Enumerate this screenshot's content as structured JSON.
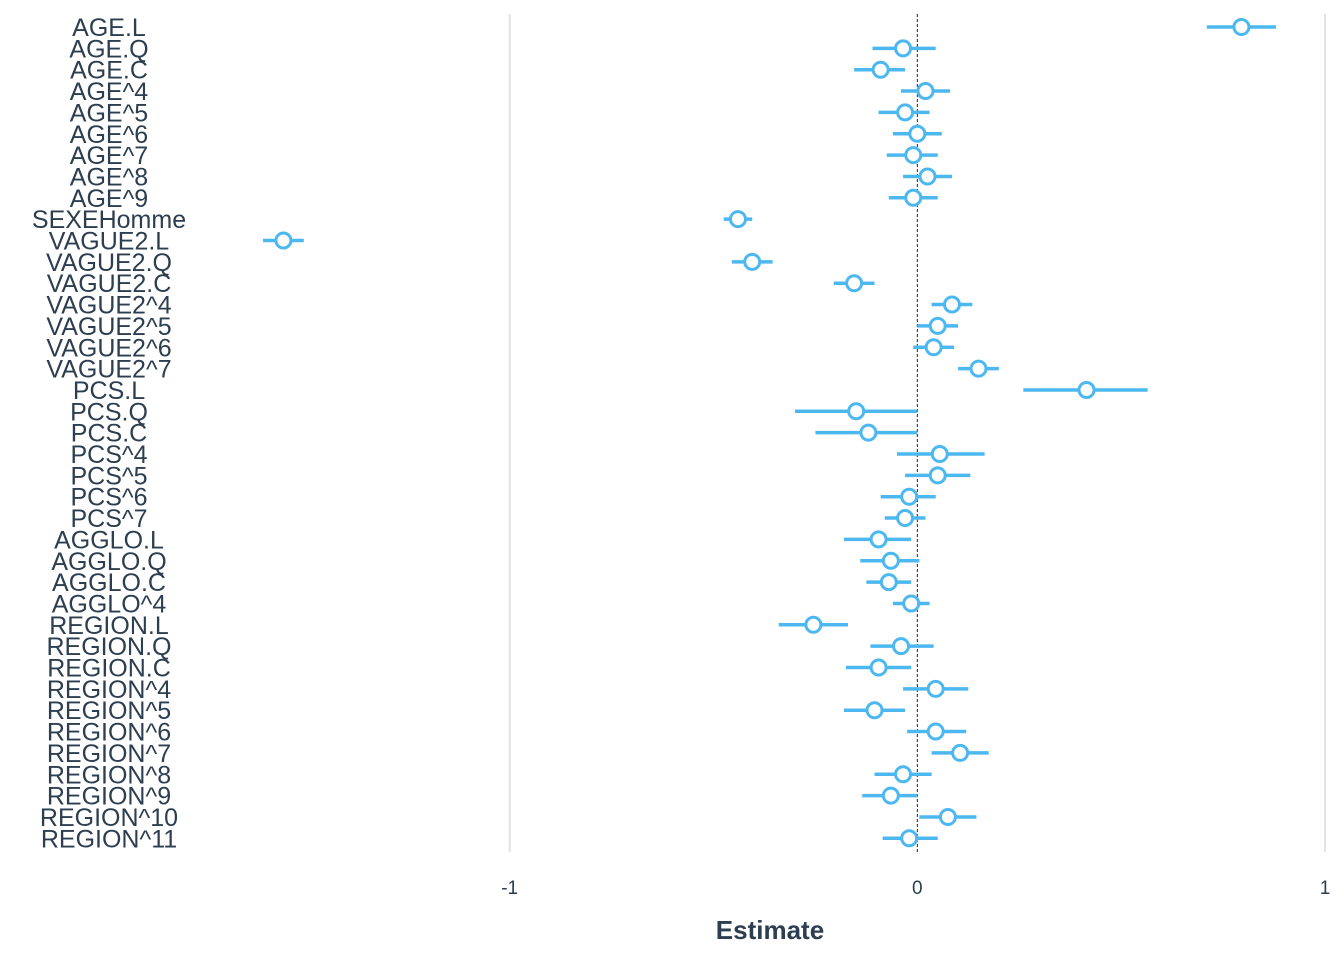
{
  "chart_data": {
    "type": "scatter",
    "variant": "coefficient-plot",
    "xlabel": "Estimate",
    "xlim": [
      -2.0,
      1.0
    ],
    "x_ticks": [
      -1,
      0,
      1
    ],
    "x_tick_labels": [
      "-1",
      "0",
      "1"
    ],
    "zero_line": true,
    "grid": "vertical-major",
    "color": "#4db8f0",
    "terms": [
      {
        "term": "AGE.L",
        "estimate": 0.795,
        "lo": 0.71,
        "hi": 0.88
      },
      {
        "term": "AGE.Q",
        "estimate": -0.035,
        "lo": -0.11,
        "hi": 0.045
      },
      {
        "term": "AGE.C",
        "estimate": -0.09,
        "lo": -0.155,
        "hi": -0.03
      },
      {
        "term": "AGE^4",
        "estimate": 0.02,
        "lo": -0.04,
        "hi": 0.08
      },
      {
        "term": "AGE^5",
        "estimate": -0.03,
        "lo": -0.095,
        "hi": 0.03
      },
      {
        "term": "AGE^6",
        "estimate": 0.0,
        "lo": -0.06,
        "hi": 0.06
      },
      {
        "term": "AGE^7",
        "estimate": -0.01,
        "lo": -0.075,
        "hi": 0.05
      },
      {
        "term": "AGE^8",
        "estimate": 0.025,
        "lo": -0.035,
        "hi": 0.085
      },
      {
        "term": "AGE^9",
        "estimate": -0.01,
        "lo": -0.07,
        "hi": 0.05
      },
      {
        "term": "SEXEHomme",
        "estimate": -0.44,
        "lo": -0.475,
        "hi": -0.405
      },
      {
        "term": "VAGUE2.L",
        "estimate": -1.555,
        "lo": -1.605,
        "hi": -1.505
      },
      {
        "term": "VAGUE2.Q",
        "estimate": -0.405,
        "lo": -0.455,
        "hi": -0.355
      },
      {
        "term": "VAGUE2.C",
        "estimate": -0.155,
        "lo": -0.205,
        "hi": -0.105
      },
      {
        "term": "VAGUE2^4",
        "estimate": 0.085,
        "lo": 0.035,
        "hi": 0.135
      },
      {
        "term": "VAGUE2^5",
        "estimate": 0.05,
        "lo": 0.0,
        "hi": 0.1
      },
      {
        "term": "VAGUE2^6",
        "estimate": 0.04,
        "lo": -0.01,
        "hi": 0.09
      },
      {
        "term": "VAGUE2^7",
        "estimate": 0.15,
        "lo": 0.1,
        "hi": 0.2
      },
      {
        "term": "PCS.L",
        "estimate": 0.415,
        "lo": 0.26,
        "hi": 0.565
      },
      {
        "term": "PCS.Q",
        "estimate": -0.15,
        "lo": -0.3,
        "hi": 0.0
      },
      {
        "term": "PCS.C",
        "estimate": -0.12,
        "lo": -0.25,
        "hi": 0.0
      },
      {
        "term": "PCS^4",
        "estimate": 0.055,
        "lo": -0.05,
        "hi": 0.165
      },
      {
        "term": "PCS^5",
        "estimate": 0.05,
        "lo": -0.03,
        "hi": 0.13
      },
      {
        "term": "PCS^6",
        "estimate": -0.02,
        "lo": -0.09,
        "hi": 0.045
      },
      {
        "term": "PCS^7",
        "estimate": -0.03,
        "lo": -0.08,
        "hi": 0.02
      },
      {
        "term": "AGGLO.L",
        "estimate": -0.095,
        "lo": -0.18,
        "hi": -0.015
      },
      {
        "term": "AGGLO.Q",
        "estimate": -0.065,
        "lo": -0.14,
        "hi": 0.005
      },
      {
        "term": "AGGLO.C",
        "estimate": -0.07,
        "lo": -0.125,
        "hi": -0.015
      },
      {
        "term": "AGGLO^4",
        "estimate": -0.015,
        "lo": -0.06,
        "hi": 0.03
      },
      {
        "term": "REGION.L",
        "estimate": -0.255,
        "lo": -0.34,
        "hi": -0.17
      },
      {
        "term": "REGION.Q",
        "estimate": -0.04,
        "lo": -0.115,
        "hi": 0.04
      },
      {
        "term": "REGION.C",
        "estimate": -0.095,
        "lo": -0.175,
        "hi": -0.015
      },
      {
        "term": "REGION^4",
        "estimate": 0.045,
        "lo": -0.035,
        "hi": 0.125
      },
      {
        "term": "REGION^5",
        "estimate": -0.105,
        "lo": -0.18,
        "hi": -0.03
      },
      {
        "term": "REGION^6",
        "estimate": 0.045,
        "lo": -0.025,
        "hi": 0.12
      },
      {
        "term": "REGION^7",
        "estimate": 0.105,
        "lo": 0.035,
        "hi": 0.175
      },
      {
        "term": "REGION^8",
        "estimate": -0.035,
        "lo": -0.105,
        "hi": 0.035
      },
      {
        "term": "REGION^9",
        "estimate": -0.065,
        "lo": -0.135,
        "hi": 0.0
      },
      {
        "term": "REGION^10",
        "estimate": 0.075,
        "lo": 0.005,
        "hi": 0.145
      },
      {
        "term": "REGION^11",
        "estimate": -0.02,
        "lo": -0.085,
        "hi": 0.05
      }
    ]
  }
}
